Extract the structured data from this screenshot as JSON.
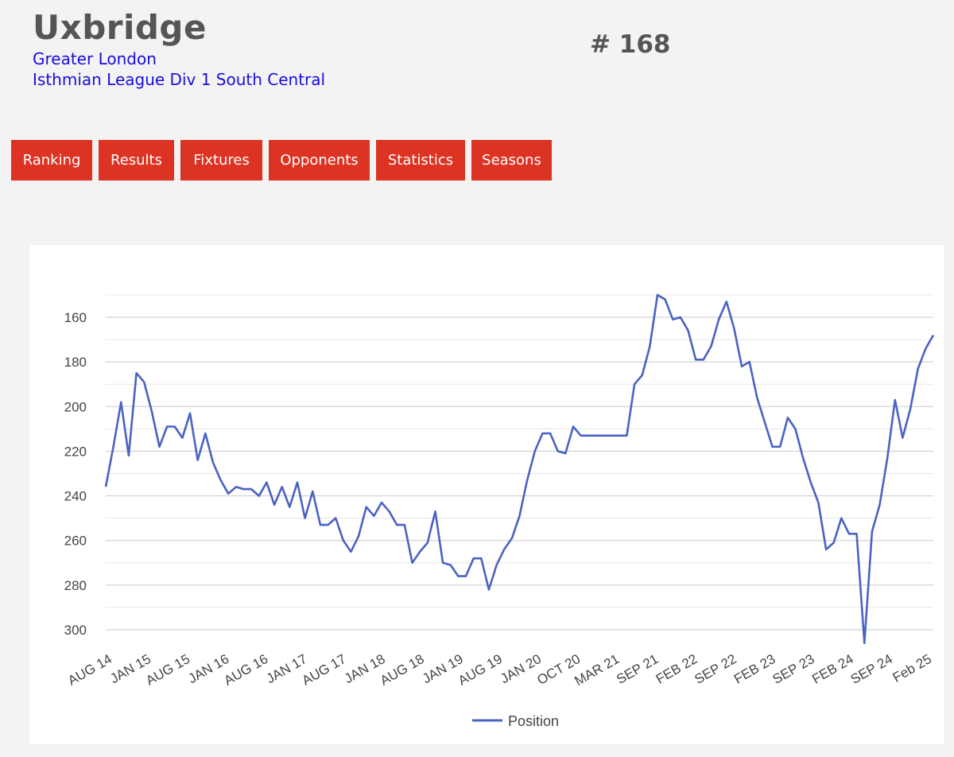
{
  "header": {
    "team_name": "Uxbridge",
    "region": "Greater London",
    "league": "Isthmian League Div 1 South Central",
    "rank": "# 168"
  },
  "nav": {
    "items": [
      {
        "label": "Ranking"
      },
      {
        "label": "Results"
      },
      {
        "label": "Fixtures"
      },
      {
        "label": "Opponents"
      },
      {
        "label": "Statistics"
      },
      {
        "label": "Seasons"
      }
    ]
  },
  "colors": {
    "nav_button": "#dc3323",
    "line": "#4a63c2",
    "link": "#1a0dde"
  },
  "chart_data": {
    "type": "line",
    "title": "",
    "xlabel": "",
    "ylabel": "",
    "y_axis_reversed": true,
    "ylim": [
      150,
      310
    ],
    "yticks": [
      160,
      180,
      200,
      220,
      240,
      260,
      280,
      300
    ],
    "grid": true,
    "legend_position": "bottom",
    "x_tick_labels": [
      "AUG 14",
      "JAN 15",
      "AUG 15",
      "JAN 16",
      "AUG 16",
      "JAN 17",
      "AUG 17",
      "JAN 18",
      "AUG 18",
      "JAN 19",
      "AUG 19",
      "JAN 20",
      "OCT 20",
      "MAR 21",
      "SEP 21",
      "FEB 22",
      "SEP 22",
      "FEB 23",
      "SEP 23",
      "FEB 24",
      "SEP 24",
      "Feb 25"
    ],
    "series": [
      {
        "name": "Position",
        "color": "#4a63c2",
        "values": [
          236,
          218,
          198,
          222,
          185,
          189,
          202,
          218,
          209,
          209,
          214,
          203,
          224,
          212,
          225,
          233,
          239,
          236,
          237,
          237,
          240,
          234,
          244,
          236,
          245,
          234,
          250,
          238,
          253,
          253,
          250,
          260,
          265,
          258,
          245,
          249,
          243,
          247,
          253,
          253,
          270,
          265,
          261,
          247,
          270,
          271,
          276,
          276,
          268,
          268,
          282,
          271,
          264,
          259,
          249,
          233,
          220,
          212,
          212,
          220,
          221,
          209,
          213,
          213,
          213,
          213,
          213,
          213,
          213,
          190,
          186,
          173,
          150,
          152,
          161,
          160,
          166,
          179,
          179,
          173,
          161,
          153,
          165,
          182,
          180,
          196,
          207,
          218,
          218,
          205,
          210,
          223,
          234,
          243,
          264,
          261,
          250,
          257,
          257,
          306,
          256,
          244,
          223,
          197,
          214,
          201,
          183,
          174,
          168
        ]
      }
    ]
  }
}
